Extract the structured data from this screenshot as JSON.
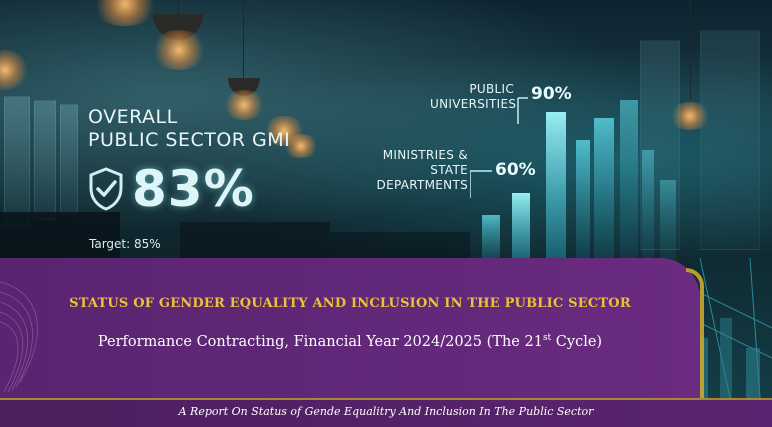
{
  "hero": {
    "gmi_title_line1": "OVERALL",
    "gmi_title_line2": "PUBLIC SECTOR GMI",
    "gmi_value": "83%",
    "gmi_target": "Target: 85%",
    "universities_label_line1": "PUBLIC",
    "universities_label_line2": "UNIVERSITIES",
    "universities_value": "90%",
    "ministries_label_line1": "MINISTRIES &",
    "ministries_label_line2": "STATE",
    "ministries_label_line3": "DEPARTMENTS",
    "ministries_value": "60%"
  },
  "banner": {
    "title": "STATUS OF GENDER EQUALITY AND INCLUSION IN THE PUBLIC SECTOR",
    "subtitle_main": "Performance Contracting, Financial Year 2024/2025 (The 21",
    "subtitle_sup": "st",
    "subtitle_end": " Cycle)"
  },
  "footer": {
    "text": "A Report On Status of Gende Equalitry And Inclusion In The Public Sector"
  },
  "colors": {
    "banner_purple": "#5a2470",
    "title_gold": "#e9c23a",
    "accent_cyan": "#6fe8f0"
  },
  "icons": [
    "shield-check-icon"
  ]
}
